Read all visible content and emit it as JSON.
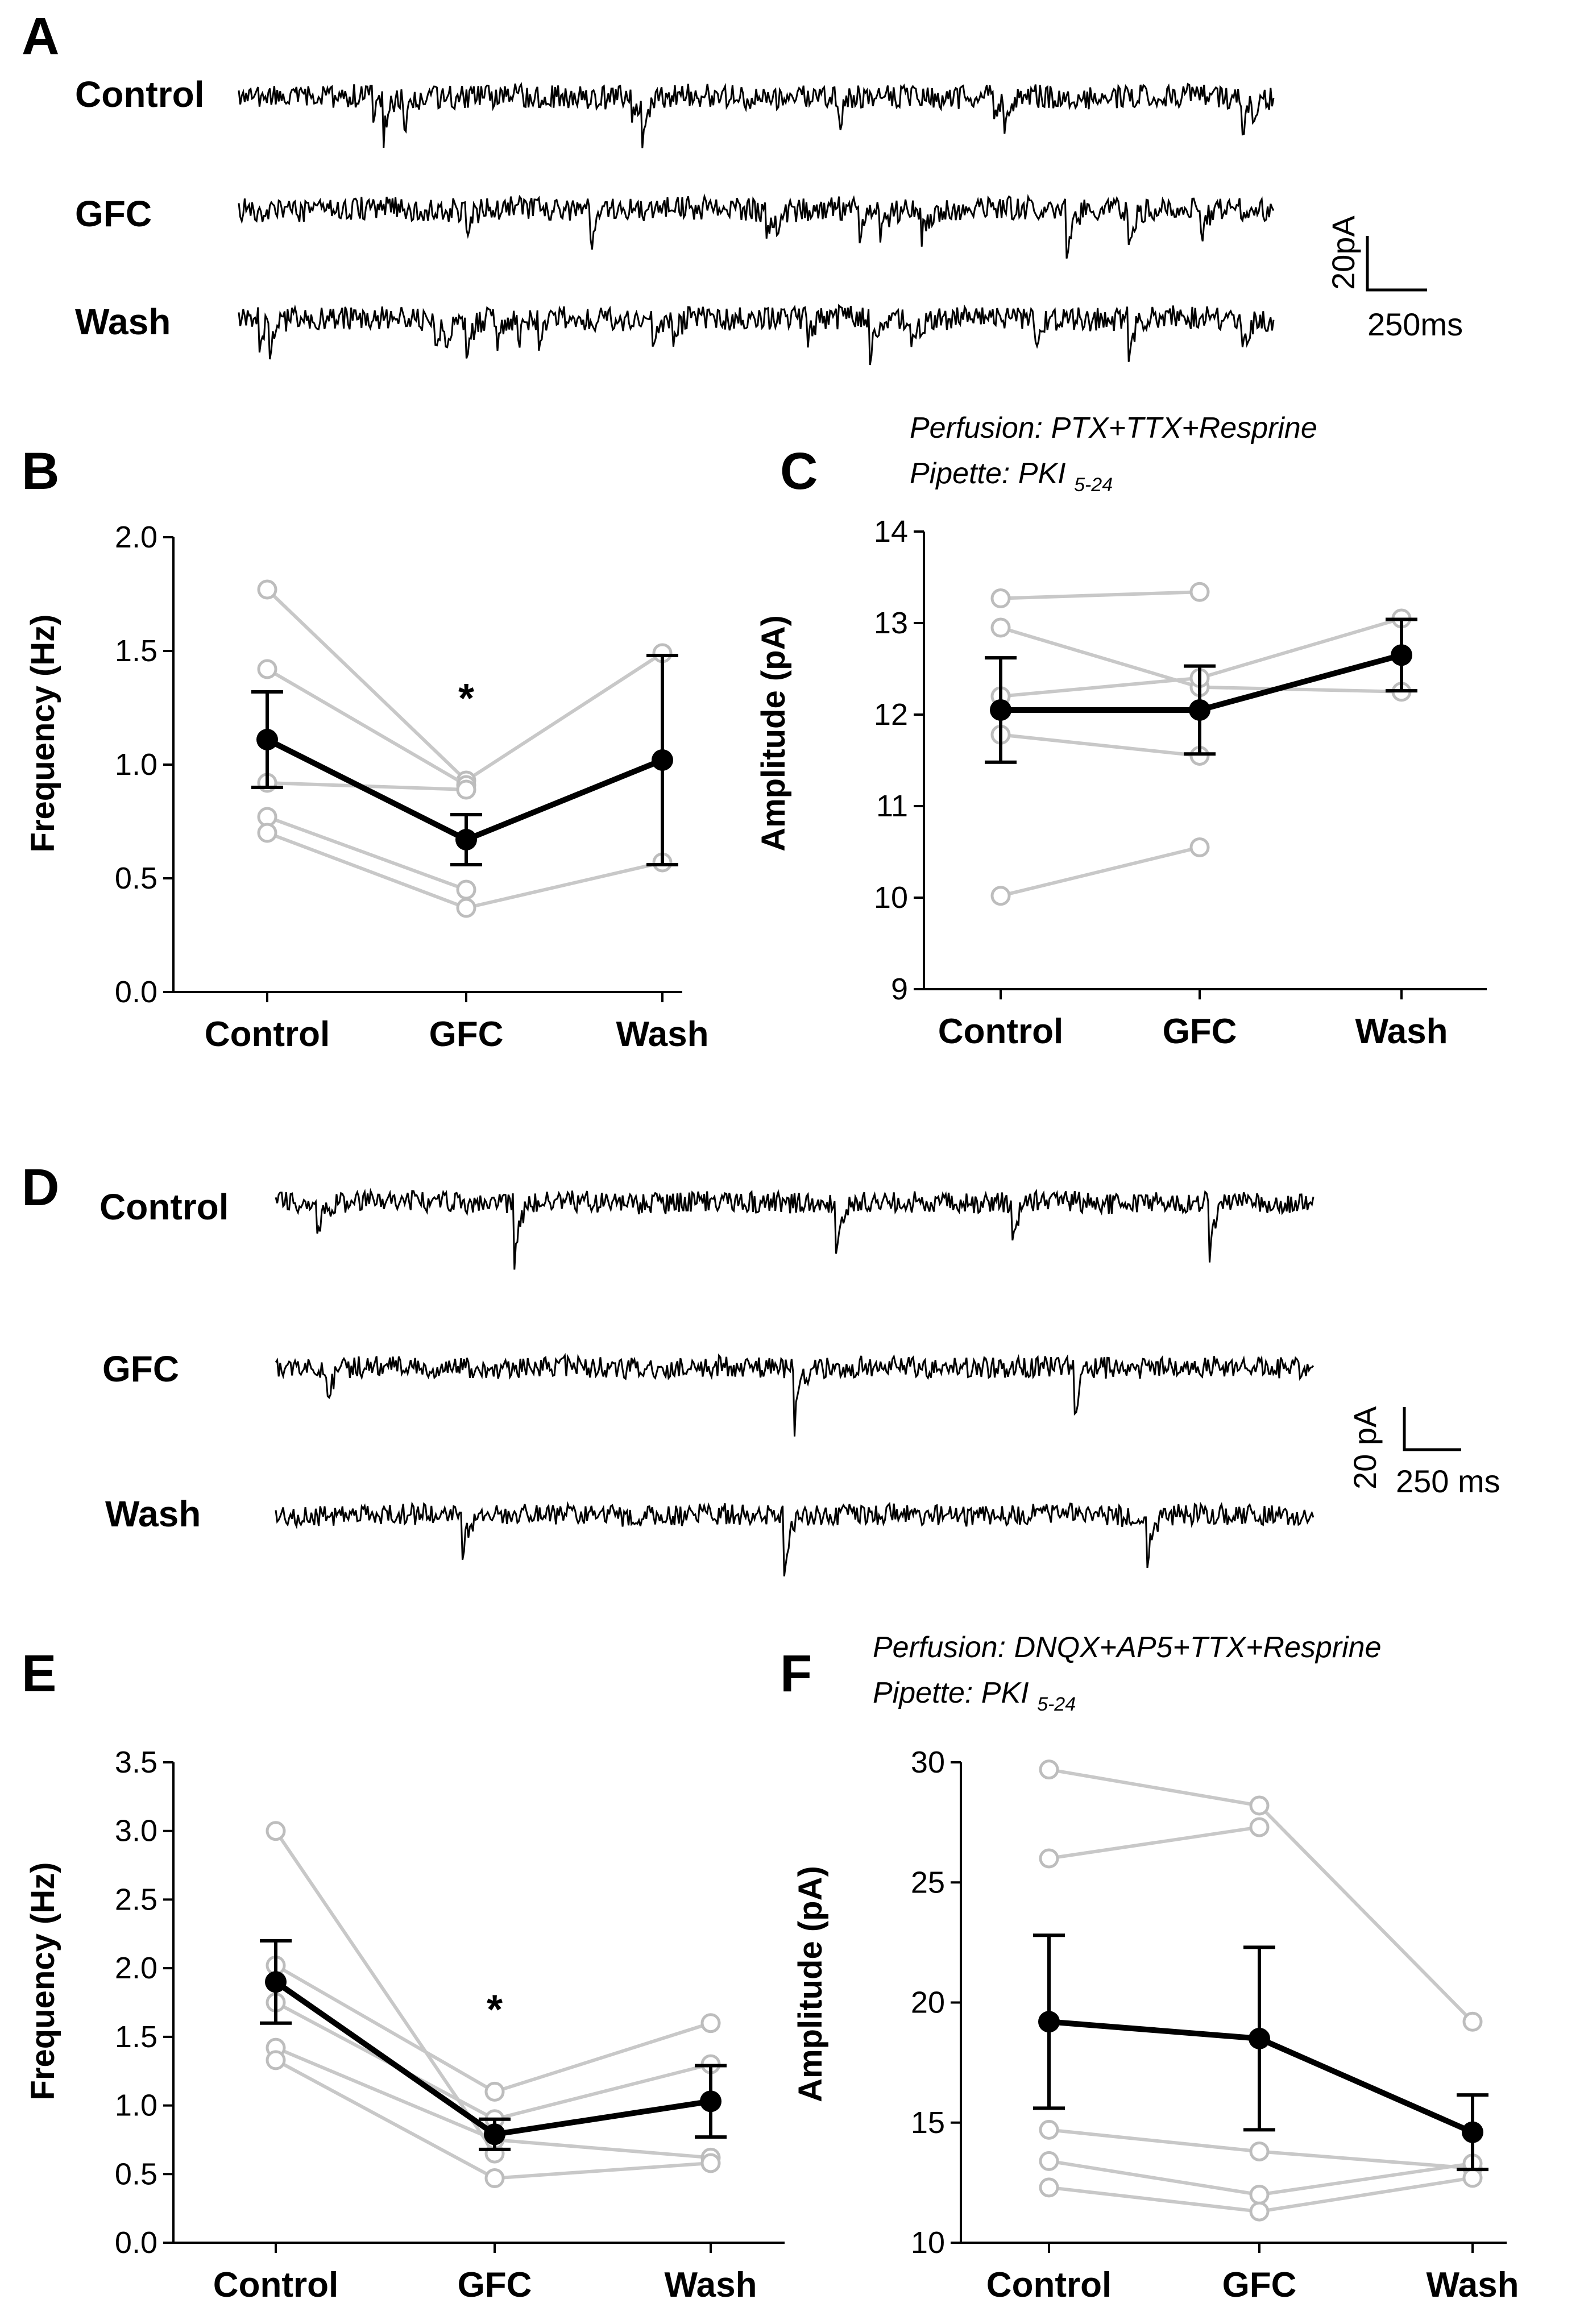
{
  "panel_labels": {
    "A": "A",
    "B": "B",
    "C": "C",
    "D": "D",
    "E": "E",
    "F": "F"
  },
  "traces_A": {
    "rows": [
      {
        "label": "Control",
        "events": [
          0.13,
          0.14,
          0.16,
          0.38,
          0.39,
          0.58,
          0.73,
          0.74,
          0.97,
          0.98
        ]
      },
      {
        "label": "GFC",
        "events": [
          0.22,
          0.34,
          0.51,
          0.52,
          0.6,
          0.62,
          0.66,
          0.8,
          0.86,
          0.93
        ]
      },
      {
        "label": "Wash",
        "events": [
          0.02,
          0.03,
          0.19,
          0.2,
          0.22,
          0.25,
          0.27,
          0.29,
          0.4,
          0.42,
          0.55,
          0.61,
          0.65,
          0.77,
          0.86,
          0.97
        ]
      }
    ],
    "scale_y": "20pA",
    "scale_x": "250ms"
  },
  "traces_D": {
    "rows": [
      {
        "label": "Control",
        "events": [
          0.04,
          0.23,
          0.54,
          0.71,
          0.9
        ]
      },
      {
        "label": "GFC",
        "events": [
          0.05,
          0.5,
          0.77
        ]
      },
      {
        "label": "Wash",
        "events": [
          0.18,
          0.49,
          0.84
        ]
      }
    ],
    "scale_y": "20 pA",
    "scale_x": "250 ms"
  },
  "notes": {
    "C": {
      "perfusion": "Perfusion: PTX+TTX+Resprine",
      "pipette": "Pipette: PKI",
      "pipette_sub": "5-24"
    },
    "F": {
      "perfusion": "Perfusion: DNQX+AP5+TTX+Resprine",
      "pipette": "Pipette: PKI",
      "pipette_sub": "5-24"
    }
  },
  "chart_data": [
    {
      "panel": "B",
      "type": "line",
      "categories": [
        "Control",
        "GFC",
        "Wash"
      ],
      "ylabel": "Frequency (Hz)",
      "ylim": [
        0.0,
        2.0
      ],
      "yticks": [
        0.0,
        0.5,
        1.0,
        1.5,
        2.0
      ],
      "ytick_labels": [
        "0.0",
        "0.5",
        "1.0",
        "1.5",
        "2.0"
      ],
      "individual": [
        [
          1.77,
          0.93,
          1.49
        ],
        [
          1.42,
          0.91,
          null
        ],
        [
          0.92,
          0.89,
          null
        ],
        [
          0.77,
          0.45,
          null
        ],
        [
          0.7,
          0.37,
          0.57
        ]
      ],
      "mean": [
        1.11,
        0.67,
        1.02
      ],
      "error": [
        0.21,
        0.11,
        0.46
      ],
      "significance": [
        {
          "index": 1,
          "label": "*"
        }
      ]
    },
    {
      "panel": "C",
      "type": "line",
      "categories": [
        "Control",
        "GFC",
        "Wash"
      ],
      "ylabel": "Amplitude (pA)",
      "ylim": [
        9,
        14
      ],
      "yticks": [
        9,
        10,
        11,
        12,
        13,
        14
      ],
      "ytick_labels": [
        "9",
        "10",
        "11",
        "12",
        "13",
        "14"
      ],
      "individual": [
        [
          13.27,
          13.34,
          null
        ],
        [
          12.95,
          12.3,
          12.25
        ],
        [
          12.2,
          12.4,
          13.05
        ],
        [
          11.78,
          11.55,
          null
        ],
        [
          10.02,
          10.55,
          null
        ]
      ],
      "mean": [
        12.05,
        12.05,
        12.65
      ],
      "error": [
        0.57,
        0.48,
        0.39
      ],
      "significance": []
    },
    {
      "panel": "E",
      "type": "line",
      "categories": [
        "Control",
        "GFC",
        "Wash"
      ],
      "ylabel": "Frequency (Hz)",
      "ylim": [
        0.0,
        3.5
      ],
      "yticks": [
        0.0,
        0.5,
        1.0,
        1.5,
        2.0,
        2.5,
        3.0,
        3.5
      ],
      "ytick_labels": [
        "0.0",
        "0.5",
        "1.0",
        "1.5",
        "2.0",
        "2.5",
        "3.0",
        "3.5"
      ],
      "individual": [
        [
          3.0,
          0.65,
          null
        ],
        [
          2.02,
          1.1,
          1.6
        ],
        [
          1.75,
          0.9,
          1.3
        ],
        [
          1.42,
          0.75,
          0.62
        ],
        [
          1.33,
          0.47,
          0.58
        ]
      ],
      "mean": [
        1.9,
        0.79,
        1.03
      ],
      "error": [
        0.3,
        0.11,
        0.26
      ],
      "significance": [
        {
          "index": 1,
          "label": "*"
        }
      ]
    },
    {
      "panel": "F",
      "type": "line",
      "categories": [
        "Control",
        "GFC",
        "Wash"
      ],
      "ylabel": "Amplitude (pA)",
      "ylim": [
        10,
        30
      ],
      "yticks": [
        10,
        15,
        20,
        25,
        30
      ],
      "ytick_labels": [
        "10",
        "15",
        "20",
        "25",
        "30"
      ],
      "individual": [
        [
          29.7,
          28.2,
          19.2
        ],
        [
          26.0,
          27.3,
          null
        ],
        [
          14.7,
          13.8,
          13.1
        ],
        [
          13.4,
          12.0,
          13.3
        ],
        [
          12.3,
          11.3,
          12.7
        ]
      ],
      "mean": [
        19.2,
        18.5,
        14.6
      ],
      "error": [
        3.6,
        3.8,
        1.55
      ],
      "significance": []
    }
  ]
}
